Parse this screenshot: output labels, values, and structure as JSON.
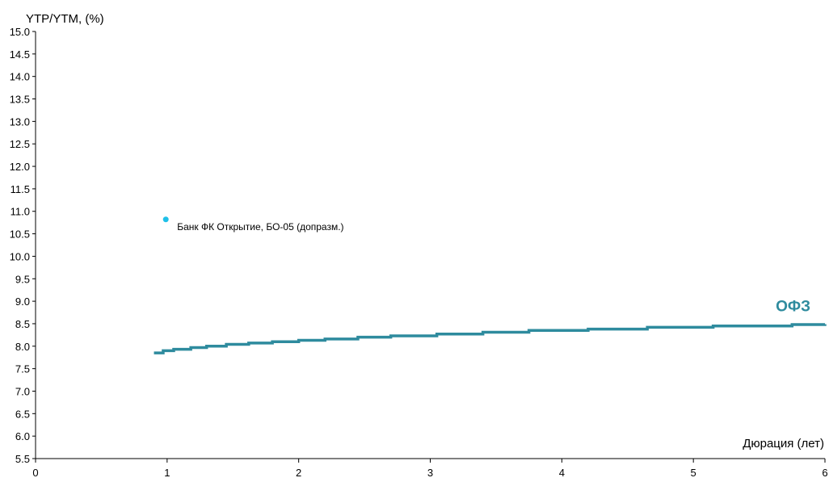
{
  "chart_data": {
    "type": "line",
    "ylabel": "YTP/YTM, (%)",
    "xlabel": "Дюрация (лет)",
    "xlim": [
      0,
      6
    ],
    "ylim": [
      5.5,
      15.0
    ],
    "x_ticks": [
      "0",
      "1",
      "2",
      "3",
      "4",
      "5",
      "6"
    ],
    "y_ticks": [
      "5.5",
      "6.0",
      "6.5",
      "7.0",
      "7.5",
      "8.0",
      "8.5",
      "9.0",
      "9.5",
      "10.0",
      "10.5",
      "11.0",
      "11.5",
      "12.0",
      "12.5",
      "13.0",
      "13.5",
      "14.0",
      "14.5",
      "15.0"
    ],
    "grid": false,
    "series": [
      {
        "name": "ОФЗ",
        "color": "#2e8b9e",
        "style": "step-line",
        "x": [
          0.9,
          0.97,
          1.05,
          1.18,
          1.3,
          1.45,
          1.62,
          1.8,
          2.0,
          2.2,
          2.45,
          2.7,
          3.05,
          3.4,
          3.75,
          4.2,
          4.65,
          5.15,
          5.75,
          6.0
        ],
        "y": [
          7.85,
          7.9,
          7.93,
          7.97,
          8.0,
          8.04,
          8.07,
          8.1,
          8.13,
          8.16,
          8.2,
          8.23,
          8.27,
          8.31,
          8.35,
          8.38,
          8.42,
          8.45,
          8.48,
          8.49
        ]
      }
    ],
    "points": [
      {
        "label": "Банк ФК Открытие, БО-05 (допразм.)",
        "x": 0.99,
        "y": 10.82,
        "color": "#1fc0e8"
      }
    ]
  }
}
